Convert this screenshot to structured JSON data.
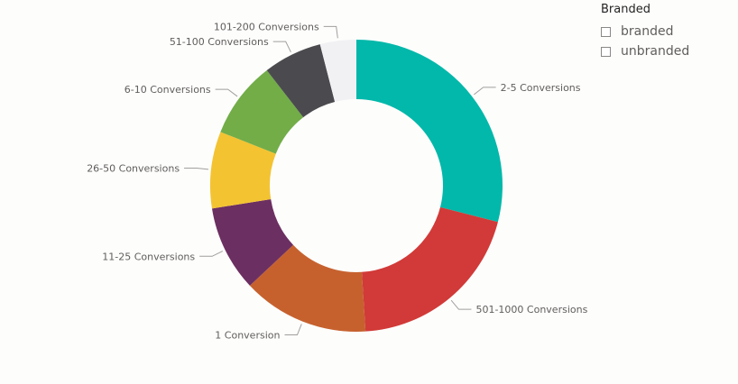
{
  "slicer": {
    "title": "Branded",
    "options": [
      "branded",
      "unbranded"
    ]
  },
  "chart_data": {
    "type": "pie",
    "donut": true,
    "title": "",
    "categories": [
      "2-5 Conversions",
      "501-1000 Conversions",
      "1 Conversion",
      "11-25 Conversions",
      "26-50 Conversions",
      "6-10 Conversions",
      "51-100 Conversions",
      "101-200 Conversions"
    ],
    "values": [
      29.0,
      20.0,
      14.0,
      9.5,
      8.5,
      8.5,
      6.5,
      4.0
    ],
    "colors": [
      "#01b8aa",
      "#d13a38",
      "#c6612e",
      "#6c2f61",
      "#f3c332",
      "#72ad48",
      "#4b4b4f",
      "#f1f0f3"
    ],
    "legend": "none"
  }
}
